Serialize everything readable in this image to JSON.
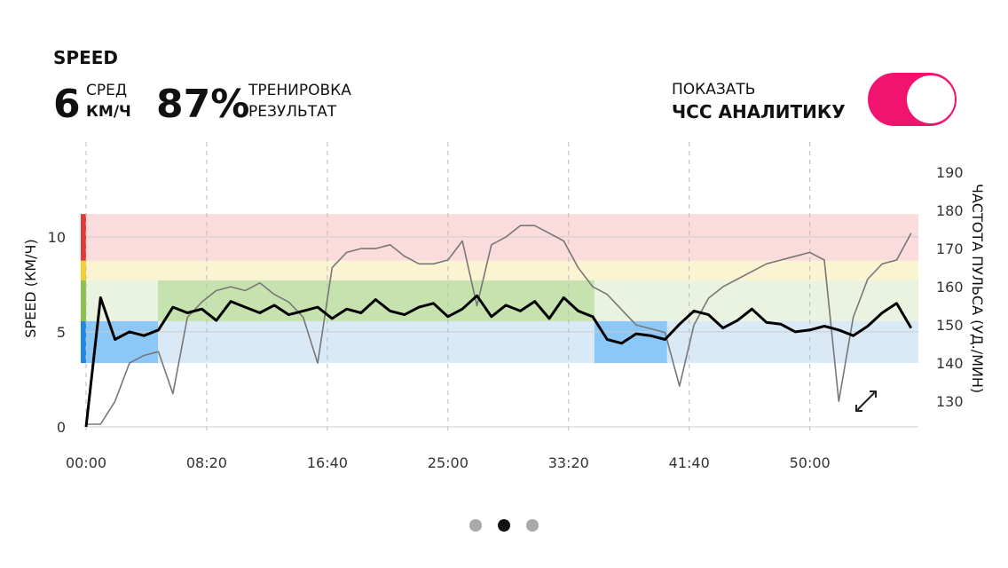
{
  "header": {
    "title": "SPEED",
    "avg_value": "6",
    "avg_label": "СРЕД",
    "avg_unit": "КМ/Ч",
    "result_value": "87%",
    "result_label1": "ТРЕНИРОВКА",
    "result_label2": "РЕЗУЛЬТАТ"
  },
  "toggle": {
    "label1": "ПОКАЗАТЬ",
    "label2": "ЧСС АНАЛИТИКУ",
    "on": true,
    "color": "#f0146e"
  },
  "chart_data": {
    "type": "line",
    "ylabel": "SPEED (КМ/Ч)",
    "y2label": "ЧАСТОТА ПУЛЬСА (УД./МИН)",
    "xlim": [
      0,
      3450
    ],
    "ylim": [
      0,
      13.4
    ],
    "y2lim": [
      123.3,
      190
    ],
    "xticks": [
      {
        "value": 0,
        "label": "00:00"
      },
      {
        "value": 500,
        "label": "08:20"
      },
      {
        "value": 1000,
        "label": "16:40"
      },
      {
        "value": 1500,
        "label": "25:00"
      },
      {
        "value": 2000,
        "label": "33:20"
      },
      {
        "value": 2500,
        "label": "41:40"
      },
      {
        "value": 3000,
        "label": "50:00"
      }
    ],
    "yticks": [
      0,
      5,
      10
    ],
    "y2ticks": [
      130,
      140,
      150,
      160,
      170,
      180,
      190
    ],
    "zones": [
      {
        "from": 8.74,
        "to": 11.2,
        "color": "#e53935",
        "fill": "#fbdcdc"
      },
      {
        "from": 7.71,
        "to": 8.74,
        "color": "#f5cf2e",
        "fill": "#fbf4d2"
      },
      {
        "from": 5.56,
        "to": 7.71,
        "color": "#8bc34a",
        "fill": "#e9f3df"
      },
      {
        "from": 3.36,
        "to": 5.56,
        "color": "#1e88e5",
        "fill": "#dae9f6"
      }
    ],
    "highlights": [
      {
        "zone": 3,
        "start": 0,
        "end": 298,
        "fill": "#8cc8f7"
      },
      {
        "zone": 2,
        "start": 298,
        "end": 2107,
        "fill": "#c6e3af"
      },
      {
        "zone": 3,
        "start": 2107,
        "end": 2408,
        "fill": "#8cc8f7"
      }
    ],
    "x": [
      0,
      60,
      120,
      180,
      240,
      300,
      360,
      420,
      480,
      540,
      600,
      660,
      720,
      780,
      840,
      900,
      960,
      1020,
      1080,
      1140,
      1200,
      1260,
      1320,
      1380,
      1440,
      1500,
      1560,
      1620,
      1680,
      1740,
      1800,
      1860,
      1920,
      1980,
      2040,
      2100,
      2160,
      2220,
      2280,
      2340,
      2400,
      2460,
      2520,
      2580,
      2640,
      2700,
      2760,
      2820,
      2880,
      2940,
      3000,
      3060,
      3120,
      3180,
      3240,
      3300,
      3360,
      3420
    ],
    "series": [
      {
        "name": "SPEED",
        "color": "#000000",
        "width": 3,
        "values": [
          0,
          6.8,
          4.6,
          5.0,
          4.8,
          5.1,
          6.3,
          6.0,
          6.2,
          5.6,
          6.6,
          6.3,
          6.0,
          6.4,
          5.9,
          6.1,
          6.3,
          5.7,
          6.2,
          6.0,
          6.7,
          6.1,
          5.9,
          6.3,
          6.5,
          5.8,
          6.2,
          6.9,
          5.8,
          6.4,
          6.1,
          6.6,
          5.7,
          6.8,
          6.1,
          5.8,
          4.6,
          4.4,
          4.9,
          4.8,
          4.6,
          5.4,
          6.1,
          5.9,
          5.2,
          5.6,
          6.2,
          5.5,
          5.4,
          5.0,
          5.1,
          5.3,
          5.1,
          4.8,
          5.3,
          6.0,
          6.5,
          5.2
        ]
      },
      {
        "name": "ЧСС",
        "color": "#777777",
        "width": 1.6,
        "axis": "y2",
        "values": [
          124,
          124,
          130,
          140,
          142,
          143,
          132,
          152,
          156,
          159,
          160,
          159,
          161,
          158,
          156,
          152,
          140,
          165,
          169,
          170,
          170,
          171,
          168,
          166,
          166,
          167,
          172,
          155,
          171,
          173,
          176,
          176,
          174,
          172,
          165,
          160,
          158,
          154,
          150,
          149,
          148,
          134,
          150,
          157,
          160,
          162,
          164,
          166,
          167,
          168,
          169,
          167,
          130,
          152,
          162,
          166,
          167,
          174
        ]
      }
    ]
  },
  "pager": {
    "count": 3,
    "active": 1
  }
}
